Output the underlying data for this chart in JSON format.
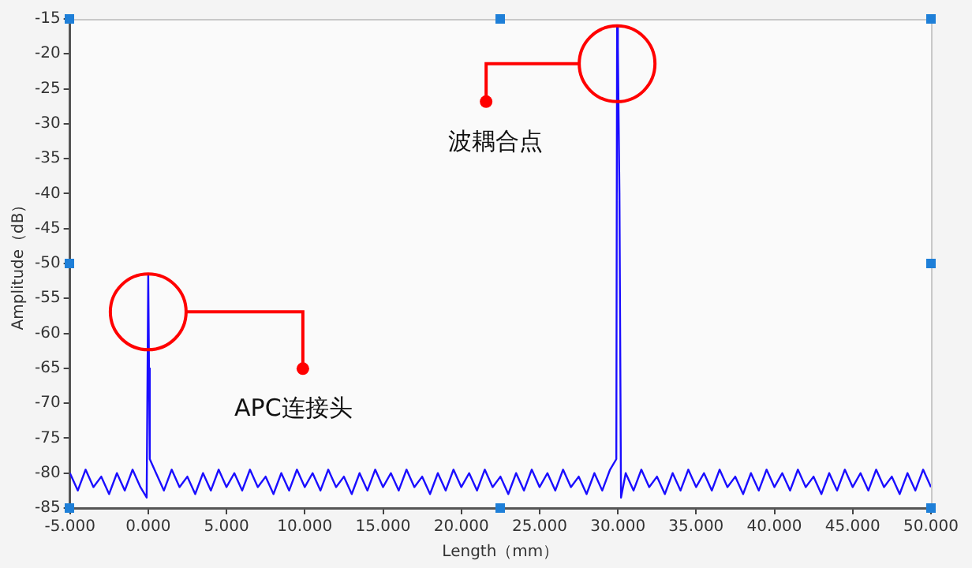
{
  "chart_data": {
    "type": "line",
    "xlabel": "Length（mm）",
    "ylabel": "Amplitude（dB）",
    "xlim": [
      -5,
      50
    ],
    "ylim": [
      -85,
      -15
    ],
    "xticks": [
      {
        "value": -5,
        "label": "-5.000"
      },
      {
        "value": 0,
        "label": "0.000"
      },
      {
        "value": 5,
        "label": "5.000"
      },
      {
        "value": 10,
        "label": "10.000"
      },
      {
        "value": 15,
        "label": "15.000"
      },
      {
        "value": 20,
        "label": "20.000"
      },
      {
        "value": 25,
        "label": "25.000"
      },
      {
        "value": 30,
        "label": "30.000"
      },
      {
        "value": 35,
        "label": "35.000"
      },
      {
        "value": 40,
        "label": "40.000"
      },
      {
        "value": 45,
        "label": "45.000"
      },
      {
        "value": 50,
        "label": "50.000"
      }
    ],
    "yticks": [
      -85,
      -80,
      -75,
      -70,
      -65,
      -60,
      -55,
      -50,
      -45,
      -40,
      -35,
      -30,
      -25,
      -20,
      -15
    ],
    "grid": false,
    "legend": false,
    "marker": "none",
    "line_style": "solid",
    "annotations": [
      "APC连接头",
      "波耦合点"
    ],
    "series": [
      {
        "color": "#1a0dff",
        "x": [
          -5,
          -4.5,
          -4,
          -3.5,
          -3,
          -2.5,
          -2,
          -1.5,
          -1,
          -0.5,
          -0.1,
          0,
          0.05,
          0.1,
          0.5,
          1,
          1.5,
          2,
          2.5,
          3,
          3.5,
          4,
          4.5,
          5,
          5.5,
          6,
          6.5,
          7,
          7.5,
          8,
          8.5,
          9,
          9.5,
          10,
          10.5,
          11,
          11.5,
          12,
          12.5,
          13,
          13.5,
          14,
          14.5,
          15,
          15.5,
          16,
          16.5,
          17,
          17.5,
          18,
          18.5,
          19,
          19.5,
          20,
          20.5,
          21,
          21.5,
          22,
          22.5,
          23,
          23.5,
          24,
          24.5,
          25,
          25.5,
          26,
          26.5,
          27,
          27.5,
          28,
          28.5,
          29,
          29.5,
          29.9,
          29.95,
          30,
          30.1,
          30.2,
          30.5,
          31,
          31.5,
          32,
          32.5,
          33,
          33.5,
          34,
          34.5,
          35,
          35.5,
          36,
          36.5,
          37,
          37.5,
          38,
          38.5,
          39,
          39.5,
          40,
          40.5,
          41,
          41.5,
          42,
          42.5,
          43,
          43.5,
          44,
          44.5,
          45,
          45.5,
          46,
          46.5,
          47,
          47.5,
          48,
          48.5,
          49,
          49.5,
          50
        ],
        "values": [
          -80,
          -82.5,
          -79.5,
          -82,
          -80.5,
          -83,
          -80,
          -82.5,
          -79.5,
          -82,
          -83.5,
          -51.5,
          -65,
          -78,
          -80,
          -82.5,
          -79.5,
          -82,
          -80.5,
          -83,
          -80,
          -82.5,
          -79.5,
          -82,
          -80,
          -82.5,
          -79.5,
          -82,
          -80.5,
          -83,
          -80,
          -82.5,
          -79.5,
          -82,
          -80,
          -82.5,
          -79.5,
          -82,
          -80.5,
          -83,
          -80,
          -82.5,
          -79.5,
          -82,
          -80,
          -82.5,
          -79.5,
          -82,
          -80.5,
          -83,
          -80,
          -82.5,
          -79.5,
          -82,
          -80,
          -82.5,
          -79.5,
          -82,
          -80.5,
          -83,
          -80,
          -82.5,
          -79.5,
          -82,
          -80,
          -82.5,
          -79.5,
          -82,
          -80.5,
          -83,
          -80,
          -82.5,
          -79.5,
          -78,
          -16,
          -19,
          -40,
          -83.5,
          -80,
          -82.5,
          -79.5,
          -82,
          -80.5,
          -83,
          -80,
          -82.5,
          -79.5,
          -82,
          -80,
          -82.5,
          -79.5,
          -82,
          -80.5,
          -83,
          -80,
          -82.5,
          -79.5,
          -82,
          -80,
          -82.5,
          -79.5,
          -82,
          -80.5,
          -83,
          -80,
          -82.5,
          -79.5,
          -82,
          -80,
          -82.5,
          -79.5,
          -82,
          -80.5,
          -83,
          -80,
          -82.5,
          -79.5,
          -82
        ]
      }
    ]
  }
}
